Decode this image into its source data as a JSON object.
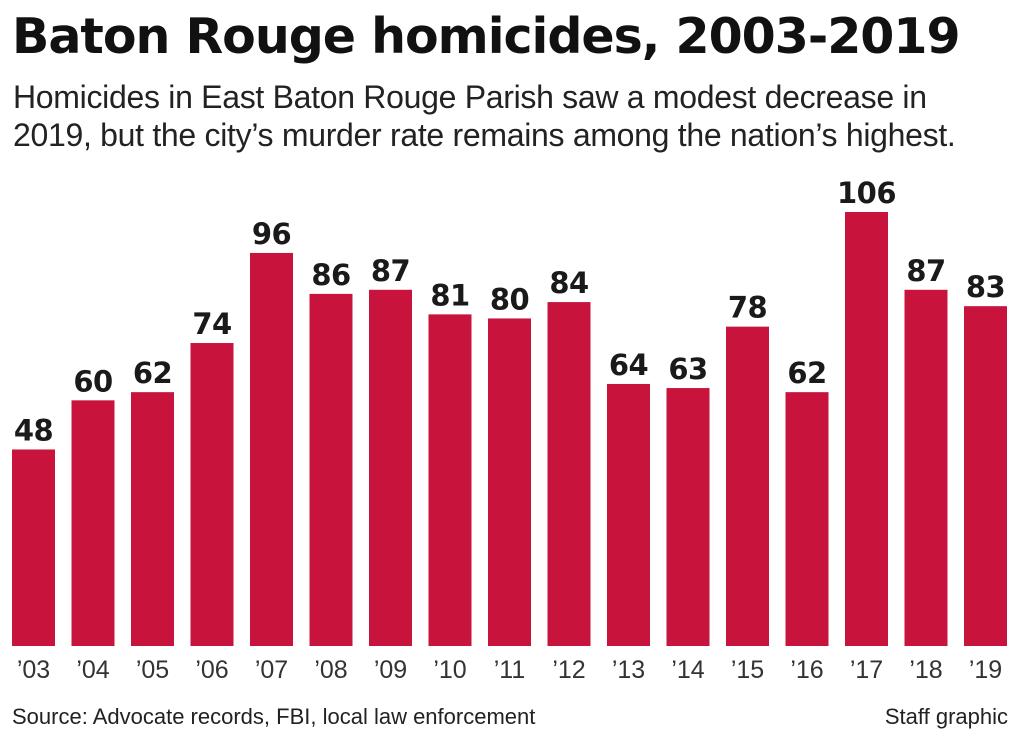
{
  "chart_data": {
    "type": "bar",
    "title": "Baton Rouge homicides, 2003-2019",
    "subtitle": "Homicides in East Baton Rouge Parish saw a modest decrease in 2019, but the city’s murder rate remains among the nation’s highest.",
    "xlabel": "",
    "ylabel": "",
    "categories": [
      "’03",
      "’04",
      "’05",
      "’06",
      "’07",
      "’08",
      "’09",
      "’10",
      "’11",
      "’12",
      "’13",
      "’14",
      "’15",
      "’16",
      "’17",
      "’18",
      "’19"
    ],
    "values": [
      48,
      60,
      62,
      74,
      96,
      86,
      87,
      81,
      80,
      84,
      64,
      63,
      78,
      62,
      106,
      87,
      83
    ],
    "ylim": [
      0,
      106
    ],
    "grid": false,
    "legend": "none",
    "bar_color": "#c8143c"
  },
  "footer": {
    "source": "Source: Advocate records, FBI, local law enforcement",
    "credit": "Staff graphic"
  }
}
